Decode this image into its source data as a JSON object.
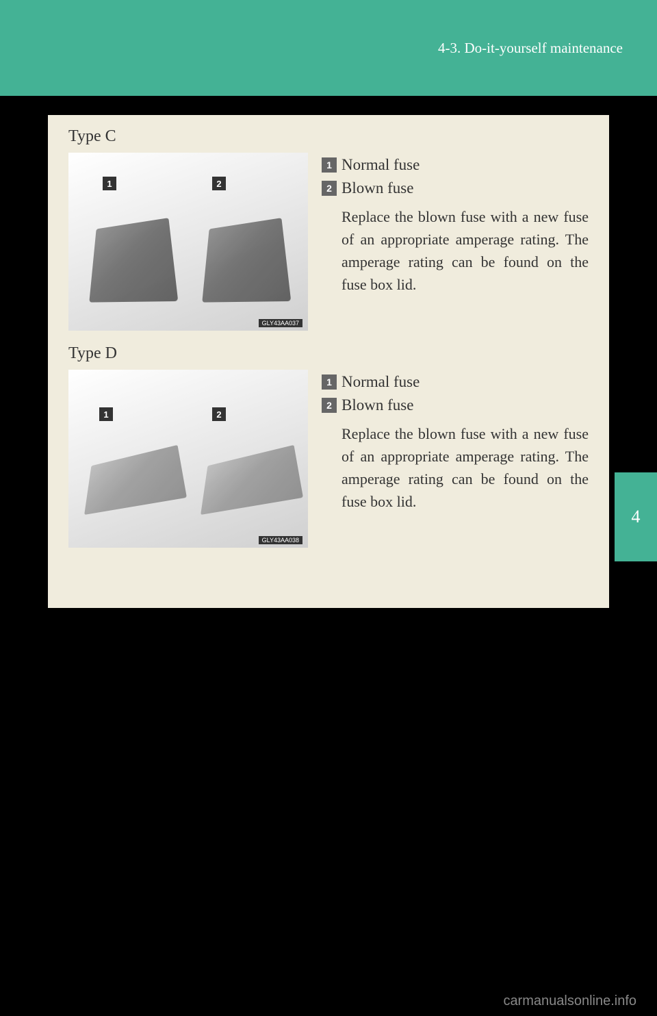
{
  "header": {
    "section_label": "4-3. Do-it-yourself maintenance"
  },
  "sections": [
    {
      "title": "Type C",
      "image_code": "GLY43AA037",
      "items": [
        {
          "num": "1",
          "label": "Normal fuse"
        },
        {
          "num": "2",
          "label": "Blown fuse"
        }
      ],
      "description": "Replace the blown fuse with a new fuse of an appropriate amperage rating. The amperage rating can be found on the fuse box lid."
    },
    {
      "title": "Type D",
      "image_code": "GLY43AA038",
      "items": [
        {
          "num": "1",
          "label": "Normal fuse"
        },
        {
          "num": "2",
          "label": "Blown fuse"
        }
      ],
      "description": "Replace the blown fuse with a new fuse of an appropriate amperage rating. The amperage rating can be found on the fuse box lid."
    }
  ],
  "side_tab": {
    "chapter": "4"
  },
  "watermark": "carmanualsonline.info",
  "colors": {
    "header_bg": "#44b295",
    "page_bg": "#000000",
    "panel_bg": "#f0ecdd",
    "text": "#333333",
    "bullet_bg": "#666666"
  }
}
